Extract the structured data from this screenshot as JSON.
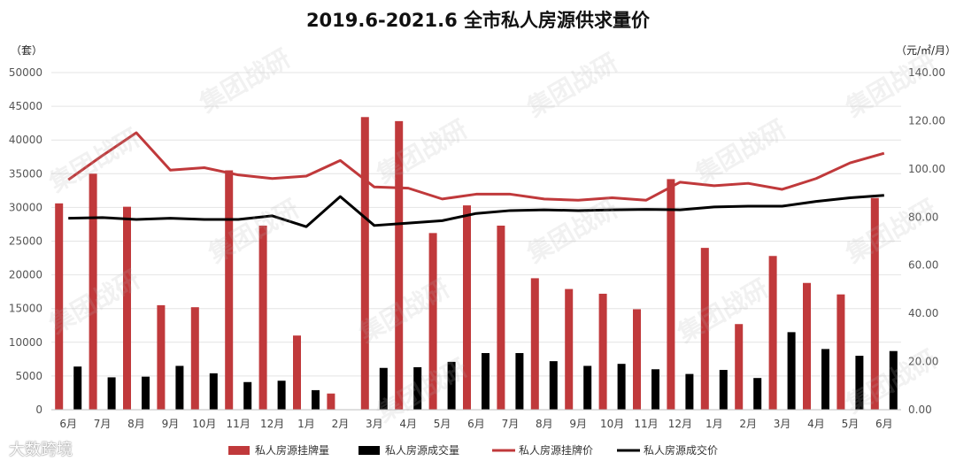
{
  "chart_data": {
    "type": "bar",
    "title": "2019.6-2021.6 全市私人房源供求量价",
    "left_unit": "（套）",
    "right_unit": "（元/㎡/月）",
    "categories": [
      "6月",
      "7月",
      "8月",
      "9月",
      "10月",
      "11月",
      "12月",
      "1月",
      "2月",
      "3月",
      "4月",
      "5月",
      "6月",
      "7月",
      "8月",
      "9月",
      "10月",
      "11月",
      "12月",
      "1月",
      "2月",
      "3月",
      "4月",
      "5月",
      "6月"
    ],
    "ylim_left": [
      0,
      50000
    ],
    "ylim_right": [
      0,
      140
    ],
    "left_ticks": [
      "0",
      "5000",
      "10000",
      "15000",
      "20000",
      "25000",
      "30000",
      "35000",
      "40000",
      "45000",
      "50000"
    ],
    "right_ticks": [
      "0.00",
      "20.00",
      "40.00",
      "60.00",
      "80.00",
      "100.00",
      "120.00",
      "140.00"
    ],
    "series": [
      {
        "name": "私人房源挂牌量",
        "kind": "bar",
        "axis": "left",
        "color": "#c0393b",
        "values": [
          30600,
          35000,
          30100,
          15500,
          15200,
          35500,
          27300,
          11000,
          2400,
          43400,
          42800,
          26200,
          30300,
          27300,
          19500,
          17900,
          17200,
          14900,
          34200,
          24000,
          12700,
          22800,
          18800,
          17100,
          31400
        ]
      },
      {
        "name": "私人房源成交量",
        "kind": "bar",
        "axis": "left",
        "color": "#000000",
        "values": [
          6400,
          4800,
          4900,
          6500,
          5400,
          4100,
          4300,
          2900,
          0,
          6200,
          6300,
          7100,
          8400,
          8400,
          7200,
          6500,
          6800,
          6000,
          5300,
          5900,
          4700,
          11500,
          9000,
          8000,
          8700
        ]
      },
      {
        "name": "私人房源挂牌价",
        "kind": "line",
        "axis": "right",
        "color": "#c0393b",
        "values": [
          95.5,
          105.5,
          115,
          99.5,
          100.5,
          97.5,
          96,
          97,
          103.5,
          92.5,
          92,
          87.5,
          89.5,
          89.5,
          87.5,
          87,
          88,
          87,
          94.5,
          93,
          94,
          91.5,
          96,
          102.5,
          106.5
        ]
      },
      {
        "name": "私人房源成交价",
        "kind": "line",
        "axis": "right",
        "color": "#000000",
        "values": [
          79.5,
          79.8,
          79,
          79.5,
          79,
          79,
          80.5,
          76,
          88.5,
          76.5,
          77.5,
          78.5,
          81.5,
          82.7,
          83,
          82.7,
          83,
          83.2,
          83,
          84.2,
          84.5,
          84.5,
          86.5,
          88,
          89
        ]
      }
    ],
    "legend_position": "bottom",
    "grid": true
  },
  "watermark": "集团战研",
  "brand": "大数跨境"
}
